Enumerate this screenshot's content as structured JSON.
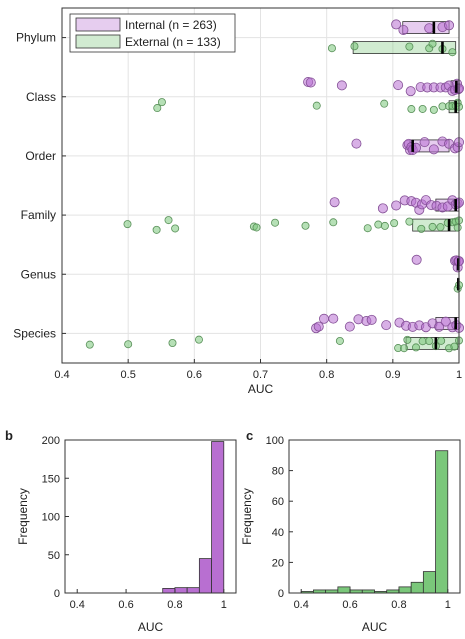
{
  "chart_data": [
    {
      "panel": "",
      "type": "scatter",
      "xlabel": "AUC",
      "ylabel": "",
      "xlim": [
        0.4,
        1.0
      ],
      "xticks": [
        "0.4",
        "0.5",
        "0.6",
        "0.7",
        "0.8",
        "0.9",
        "1"
      ],
      "categories": [
        "Phylum",
        "Class",
        "Order",
        "Family",
        "Genus",
        "Species"
      ],
      "grid": true,
      "legend_position": "top-left",
      "series": [
        {
          "name": "Internal (n = 263)",
          "color": "#b86fd1",
          "points": {
            "Phylum": [
              0.905,
              0.916,
              0.955,
              0.975,
              0.985
            ],
            "Class": [
              0.772,
              0.776,
              0.823,
              0.908,
              0.927,
              0.942,
              0.952,
              0.962,
              0.972,
              0.98,
              0.985,
              0.99,
              0.994,
              0.997,
              0.999,
              1.0
            ],
            "Order": [
              0.845,
              0.922,
              0.924,
              0.926,
              0.928,
              0.93,
              0.935,
              0.948,
              0.962,
              0.975,
              0.985,
              0.994,
              0.998,
              1.0
            ],
            "Family": [
              0.812,
              0.885,
              0.905,
              0.918,
              0.928,
              0.935,
              0.94,
              0.944,
              0.95,
              0.958,
              0.966,
              0.975,
              0.983,
              0.99,
              0.995,
              0.998,
              1.0
            ],
            "Genus": [
              0.936,
              0.994,
              0.996,
              0.998,
              0.999,
              1.0
            ],
            "Species": [
              0.784,
              0.788,
              0.796,
              0.81,
              0.835,
              0.848,
              0.86,
              0.868,
              0.89,
              0.91,
              0.92,
              0.93,
              0.94,
              0.95,
              0.96,
              0.97,
              0.98,
              0.99,
              0.996,
              1.0
            ]
          },
          "boxes": {
            "Phylum": {
              "q1": 0.915,
              "median": 0.962,
              "q3": 0.985
            },
            "Class": {
              "q1": 0.988,
              "median": 0.996,
              "q3": 1.0
            },
            "Order": {
              "q1": 0.926,
              "median": 0.93,
              "q3": 0.985
            },
            "Family": {
              "q1": 0.965,
              "median": 0.995,
              "q3": 1.0
            },
            "Genus": {
              "q1": 0.996,
              "median": 0.999,
              "q3": 1.0
            },
            "Species": {
              "q1": 0.965,
              "median": 0.995,
              "q3": 1.0
            }
          }
        },
        {
          "name": "External (n = 133)",
          "color": "#7ac77a",
          "points": {
            "Phylum": [
              0.808,
              0.842,
              0.925,
              0.955,
              0.96,
              0.975,
              0.99
            ],
            "Class": [
              0.544,
              0.551,
              0.785,
              0.887,
              0.928,
              0.945,
              0.962,
              0.975,
              0.985,
              0.99,
              0.995,
              0.998,
              1.0
            ],
            "Family": [
              0.499,
              0.543,
              0.561,
              0.571,
              0.69,
              0.694,
              0.722,
              0.768,
              0.81,
              0.862,
              0.878,
              0.888,
              0.902,
              0.925,
              0.943,
              0.96,
              0.972,
              0.983,
              0.99,
              0.995,
              0.998,
              1.0
            ],
            "Genus": [
              0.998,
              1.0
            ],
            "Species": [
              0.442,
              0.5,
              0.567,
              0.607,
              0.82,
              0.908,
              0.917,
              0.922,
              0.935,
              0.945,
              0.955,
              0.965,
              0.973,
              0.985,
              0.993,
              1.0
            ]
          },
          "boxes": {
            "Phylum": {
              "q1": 0.84,
              "median": 0.975,
              "q3": 0.995
            },
            "Class": {
              "q1": 0.985,
              "median": 0.995,
              "q3": 1.0
            },
            "Family": {
              "q1": 0.93,
              "median": 0.985,
              "q3": 1.0
            },
            "Genus": {
              "q1": 0.998,
              "median": 0.999,
              "q3": 1.0
            },
            "Species": {
              "q1": 0.92,
              "median": 0.965,
              "q3": 0.998
            }
          }
        }
      ]
    },
    {
      "panel": "b",
      "type": "bar",
      "xlabel": "AUC",
      "ylabel": "Frequency",
      "xlim": [
        0.35,
        1.05
      ],
      "ylim": [
        0,
        200
      ],
      "xticks": [
        "0.4",
        "0.6",
        "0.8",
        "1"
      ],
      "yticks": [
        "0",
        "50",
        "100",
        "150",
        "200"
      ],
      "color": "#b86fd1",
      "bins": [
        {
          "x0": 0.75,
          "x1": 0.8,
          "value": 6
        },
        {
          "x0": 0.8,
          "x1": 0.85,
          "value": 7
        },
        {
          "x0": 0.85,
          "x1": 0.9,
          "value": 7
        },
        {
          "x0": 0.9,
          "x1": 0.95,
          "value": 45
        },
        {
          "x0": 0.95,
          "x1": 1.0,
          "value": 198
        }
      ]
    },
    {
      "panel": "c",
      "type": "bar",
      "xlabel": "AUC",
      "ylabel": "Frequency",
      "xlim": [
        0.35,
        1.05
      ],
      "ylim": [
        0,
        100
      ],
      "xticks": [
        "0.4",
        "0.6",
        "0.8",
        "1"
      ],
      "yticks": [
        "0",
        "20",
        "40",
        "60",
        "80",
        "100"
      ],
      "color": "#7ac77a",
      "bins": [
        {
          "x0": 0.4,
          "x1": 0.45,
          "value": 1
        },
        {
          "x0": 0.45,
          "x1": 0.5,
          "value": 2
        },
        {
          "x0": 0.5,
          "x1": 0.55,
          "value": 2
        },
        {
          "x0": 0.55,
          "x1": 0.6,
          "value": 4
        },
        {
          "x0": 0.6,
          "x1": 0.65,
          "value": 2
        },
        {
          "x0": 0.65,
          "x1": 0.7,
          "value": 2
        },
        {
          "x0": 0.7,
          "x1": 0.75,
          "value": 1
        },
        {
          "x0": 0.75,
          "x1": 0.8,
          "value": 2
        },
        {
          "x0": 0.8,
          "x1": 0.85,
          "value": 4
        },
        {
          "x0": 0.85,
          "x1": 0.9,
          "value": 7
        },
        {
          "x0": 0.9,
          "x1": 0.95,
          "value": 14
        },
        {
          "x0": 0.95,
          "x1": 1.0,
          "value": 93
        }
      ]
    }
  ]
}
